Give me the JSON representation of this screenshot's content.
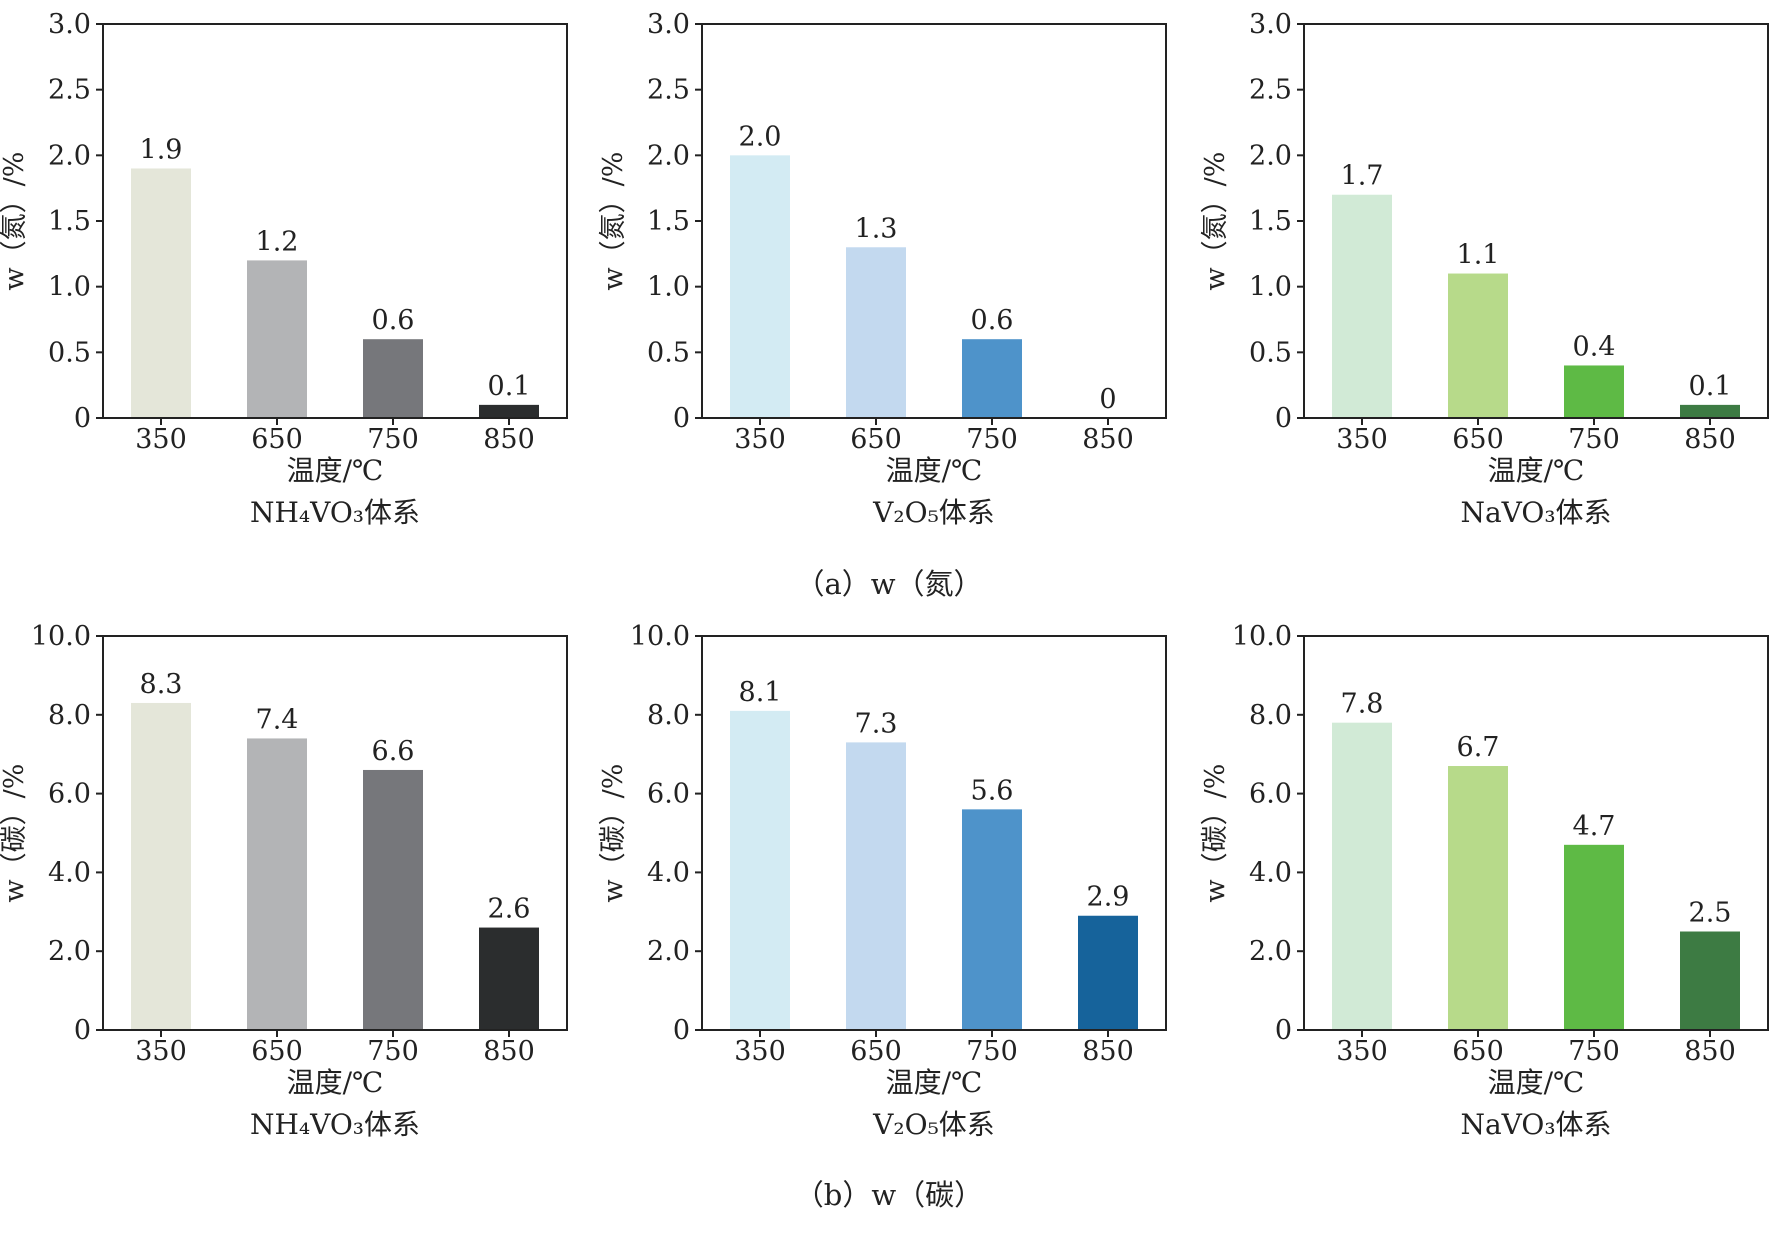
{
  "captions": [
    "（a）w（氮）",
    "（b）w（碳）"
  ],
  "chart_data": [
    {
      "type": "bar",
      "row": 0,
      "col": 0,
      "categories": [
        "350",
        "650",
        "750",
        "850"
      ],
      "values": [
        1.9,
        1.2,
        0.6,
        0.1
      ],
      "value_labels": [
        "1.9",
        "1.2",
        "0.6",
        "0.1"
      ],
      "colors": [
        "#e4e6d9",
        "#b3b4b6",
        "#76777b",
        "#2b2d2e"
      ],
      "ylabel": "w（氮）/%",
      "xlabel": "温度/℃",
      "system": "NH₄VO₃体系",
      "ylim": [
        0,
        3.0
      ],
      "yticks": [
        "0",
        "0.5",
        "1.0",
        "1.5",
        "2.0",
        "2.5",
        "3.0"
      ]
    },
    {
      "type": "bar",
      "row": 0,
      "col": 1,
      "categories": [
        "350",
        "650",
        "750",
        "850"
      ],
      "values": [
        2.0,
        1.3,
        0.6,
        0
      ],
      "value_labels": [
        "2.0",
        "1.3",
        "0.6",
        "0"
      ],
      "colors": [
        "#d3ebf3",
        "#c3d9ef",
        "#4e93ca",
        "#16639b"
      ],
      "ylabel": "w（氮）/%",
      "xlabel": "温度/℃",
      "system": "V₂O₅体系",
      "ylim": [
        0,
        3.0
      ],
      "yticks": [
        "0",
        "0.5",
        "1.0",
        "1.5",
        "2.0",
        "2.5",
        "3.0"
      ]
    },
    {
      "type": "bar",
      "row": 0,
      "col": 2,
      "categories": [
        "350",
        "650",
        "750",
        "850"
      ],
      "values": [
        1.7,
        1.1,
        0.4,
        0.1
      ],
      "value_labels": [
        "1.7",
        "1.1",
        "0.4",
        "0.1"
      ],
      "colors": [
        "#d1ead6",
        "#b7da8a",
        "#5eba45",
        "#3d7b43"
      ],
      "ylabel": "w（氮）/%",
      "xlabel": "温度/℃",
      "system": "NaVO₃体系",
      "ylim": [
        0,
        3.0
      ],
      "yticks": [
        "0",
        "0.5",
        "1.0",
        "1.5",
        "2.0",
        "2.5",
        "3.0"
      ]
    },
    {
      "type": "bar",
      "row": 1,
      "col": 0,
      "categories": [
        "350",
        "650",
        "750",
        "850"
      ],
      "values": [
        8.3,
        7.4,
        6.6,
        2.6
      ],
      "value_labels": [
        "8.3",
        "7.4",
        "6.6",
        "2.6"
      ],
      "colors": [
        "#e4e6d9",
        "#b3b4b6",
        "#76777b",
        "#2b2d2e"
      ],
      "ylabel": "w（碳）/%",
      "xlabel": "温度/℃",
      "system": "NH₄VO₃体系",
      "ylim": [
        0,
        10.0
      ],
      "yticks": [
        "0",
        "2.0",
        "4.0",
        "6.0",
        "8.0",
        "10.0"
      ]
    },
    {
      "type": "bar",
      "row": 1,
      "col": 1,
      "categories": [
        "350",
        "650",
        "750",
        "850"
      ],
      "values": [
        8.1,
        7.3,
        5.6,
        2.9
      ],
      "value_labels": [
        "8.1",
        "7.3",
        "5.6",
        "2.9"
      ],
      "colors": [
        "#d3ebf3",
        "#c3d9ef",
        "#4e93ca",
        "#16639b"
      ],
      "ylabel": "w（碳）/%",
      "xlabel": "温度/℃",
      "system": "V₂O₅体系",
      "ylim": [
        0,
        10.0
      ],
      "yticks": [
        "0",
        "2.0",
        "4.0",
        "6.0",
        "8.0",
        "10.0"
      ]
    },
    {
      "type": "bar",
      "row": 1,
      "col": 2,
      "categories": [
        "350",
        "650",
        "750",
        "850"
      ],
      "values": [
        7.8,
        6.7,
        4.7,
        2.5
      ],
      "value_labels": [
        "7.8",
        "6.7",
        "4.7",
        "2.5"
      ],
      "colors": [
        "#d1ead6",
        "#b7da8a",
        "#5eba45",
        "#3d7b43"
      ],
      "ylabel": "w（碳）/%",
      "xlabel": "温度/℃",
      "system": "NaVO₃体系",
      "ylim": [
        0,
        10.0
      ],
      "yticks": [
        "0",
        "2.0",
        "4.0",
        "6.0",
        "8.0",
        "10.0"
      ]
    }
  ]
}
